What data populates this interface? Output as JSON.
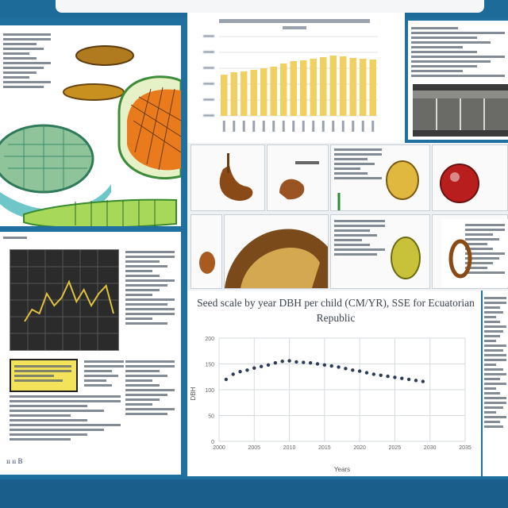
{
  "poster": {
    "frame_color": "#1d6b99",
    "accent_color": "#e8c84a",
    "footer_note": "ıı ıı   B"
  },
  "line_chart": {
    "title": "Seed scale by year DBH per child (CM/YR), SSE for Ecuatorian Republic",
    "xlabel": "Years",
    "ylabel": "DBH",
    "yticks": [
      "200",
      "150",
      "100",
      "50",
      "0"
    ],
    "xticks": [
      "2000",
      "2005",
      "2010",
      "2015",
      "2020",
      "2025",
      "2030",
      "2035"
    ]
  },
  "chart_data": [
    {
      "type": "scatter",
      "title": "Seed scale by year DBH per child (CM/YR), SSE for Ecuatorian Republic",
      "xlabel": "Years",
      "ylabel": "DBH",
      "x": [
        2001,
        2002,
        2003,
        2004,
        2005,
        2006,
        2007,
        2008,
        2009,
        2010,
        2011,
        2012,
        2013,
        2014,
        2015,
        2016,
        2017,
        2018,
        2019,
        2020,
        2021,
        2022,
        2023,
        2024,
        2025,
        2026,
        2027,
        2028,
        2029
      ],
      "y": [
        120,
        130,
        135,
        138,
        142,
        145,
        148,
        152,
        155,
        156,
        154,
        153,
        152,
        150,
        148,
        146,
        144,
        141,
        138,
        136,
        133,
        130,
        128,
        126,
        124,
        122,
        120,
        118,
        116
      ],
      "xlim": [
        2000,
        2035
      ],
      "ylim": [
        0,
        200
      ],
      "grid": true,
      "legend": "none"
    },
    {
      "type": "bar",
      "categories": [
        "1",
        "2",
        "3",
        "4",
        "5",
        "6",
        "7",
        "8",
        "9",
        "10",
        "11",
        "12",
        "13",
        "14",
        "15",
        "16"
      ],
      "values": [
        52,
        55,
        56,
        58,
        60,
        62,
        66,
        69,
        70,
        72,
        74,
        76,
        75,
        73,
        72,
        71
      ],
      "ylim": [
        0,
        100
      ],
      "grid": true,
      "color": "#f0d060"
    },
    {
      "type": "line",
      "x": [
        0,
        1,
        2,
        3,
        4,
        5,
        6,
        7,
        8,
        9,
        10,
        11,
        12
      ],
      "y": [
        20,
        35,
        30,
        55,
        40,
        50,
        70,
        45,
        60,
        40,
        55,
        65,
        30
      ],
      "color": "#e0c040",
      "grid": true
    }
  ]
}
